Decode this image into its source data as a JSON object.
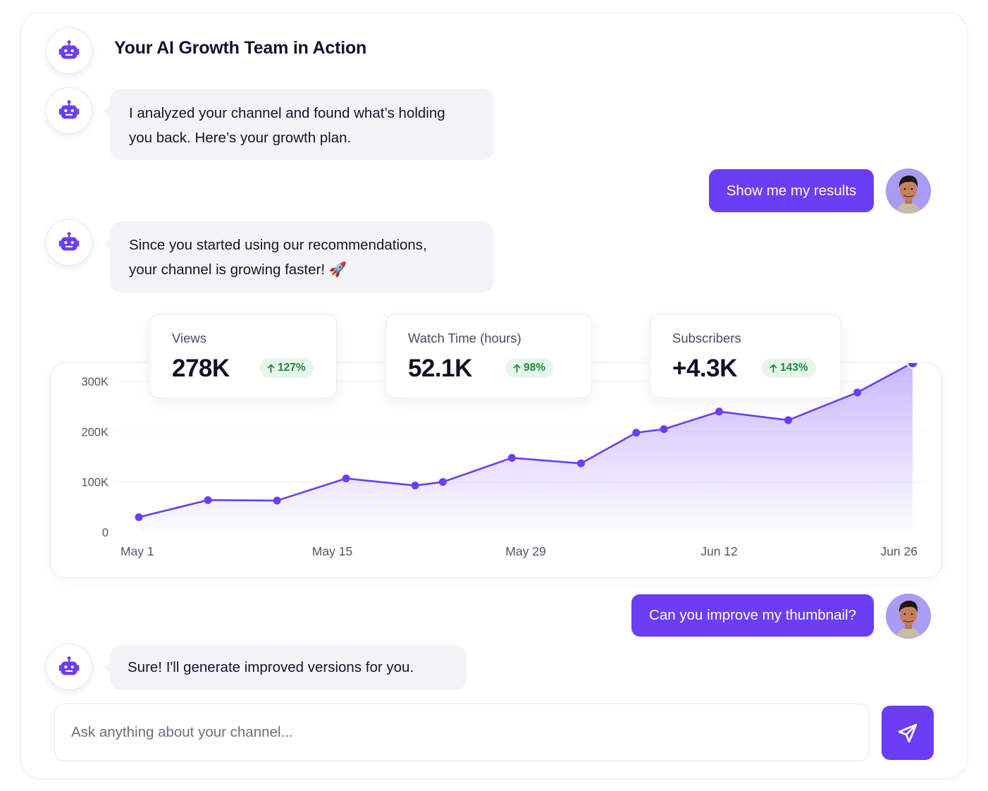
{
  "header": {
    "title": "Your AI Growth Team in Action",
    "avatar_icon": "robot-icon"
  },
  "messages": {
    "bot1": {
      "line1": "I analyzed your channel and found what’s holding",
      "line2": "you back. Here’s your growth plan."
    },
    "user1": "Show me my results",
    "bot2": {
      "line1": "Since you started using our recommendations,",
      "line2": "your channel is growing faster! 🚀"
    },
    "user2": "Can you improve my thumbnail?",
    "bot3": "Sure! I'll generate improved versions for you."
  },
  "stats": [
    {
      "label": "Views",
      "value": "278K",
      "change": "127%",
      "trend_icon": "arrow-up-icon"
    },
    {
      "label": "Watch Time (hours)",
      "value": "52.1K",
      "change": "98%",
      "trend_icon": "arrow-up-icon"
    },
    {
      "label": "Subscribers",
      "value": "+4.3K",
      "change": "143%",
      "trend_icon": "arrow-up-icon"
    }
  ],
  "colors": {
    "accent": "#6b3df5",
    "positive": "#1f8a3d",
    "positive_bg": "#e6f6ea",
    "bubble_bg": "#f3f3f8"
  },
  "chart_data": {
    "type": "area",
    "title": "",
    "xlabel": "",
    "ylabel": "",
    "x_ticks": [
      "May 1",
      "May 15",
      "May 29",
      "Jun 12",
      "Jun 26"
    ],
    "y_ticks": [
      "0",
      "100K",
      "200K",
      "300K"
    ],
    "ylim": [
      0,
      300000
    ],
    "grid": true,
    "series": [
      {
        "x": [
          "2024-05-01",
          "2024-05-06",
          "2024-05-11",
          "2024-05-16",
          "2024-05-21",
          "2024-05-23",
          "2024-05-28",
          "2024-06-02",
          "2024-06-06",
          "2024-06-08",
          "2024-06-12",
          "2024-06-17",
          "2024-06-22",
          "2024-06-26"
        ],
        "values": [
          30000,
          64000,
          63000,
          107000,
          93000,
          100000,
          148000,
          137000,
          198000,
          205000,
          240000,
          223000,
          278000,
          337000
        ]
      }
    ]
  },
  "input": {
    "placeholder": "Ask anything about your channel..."
  },
  "send_button": {
    "icon": "send-icon"
  }
}
